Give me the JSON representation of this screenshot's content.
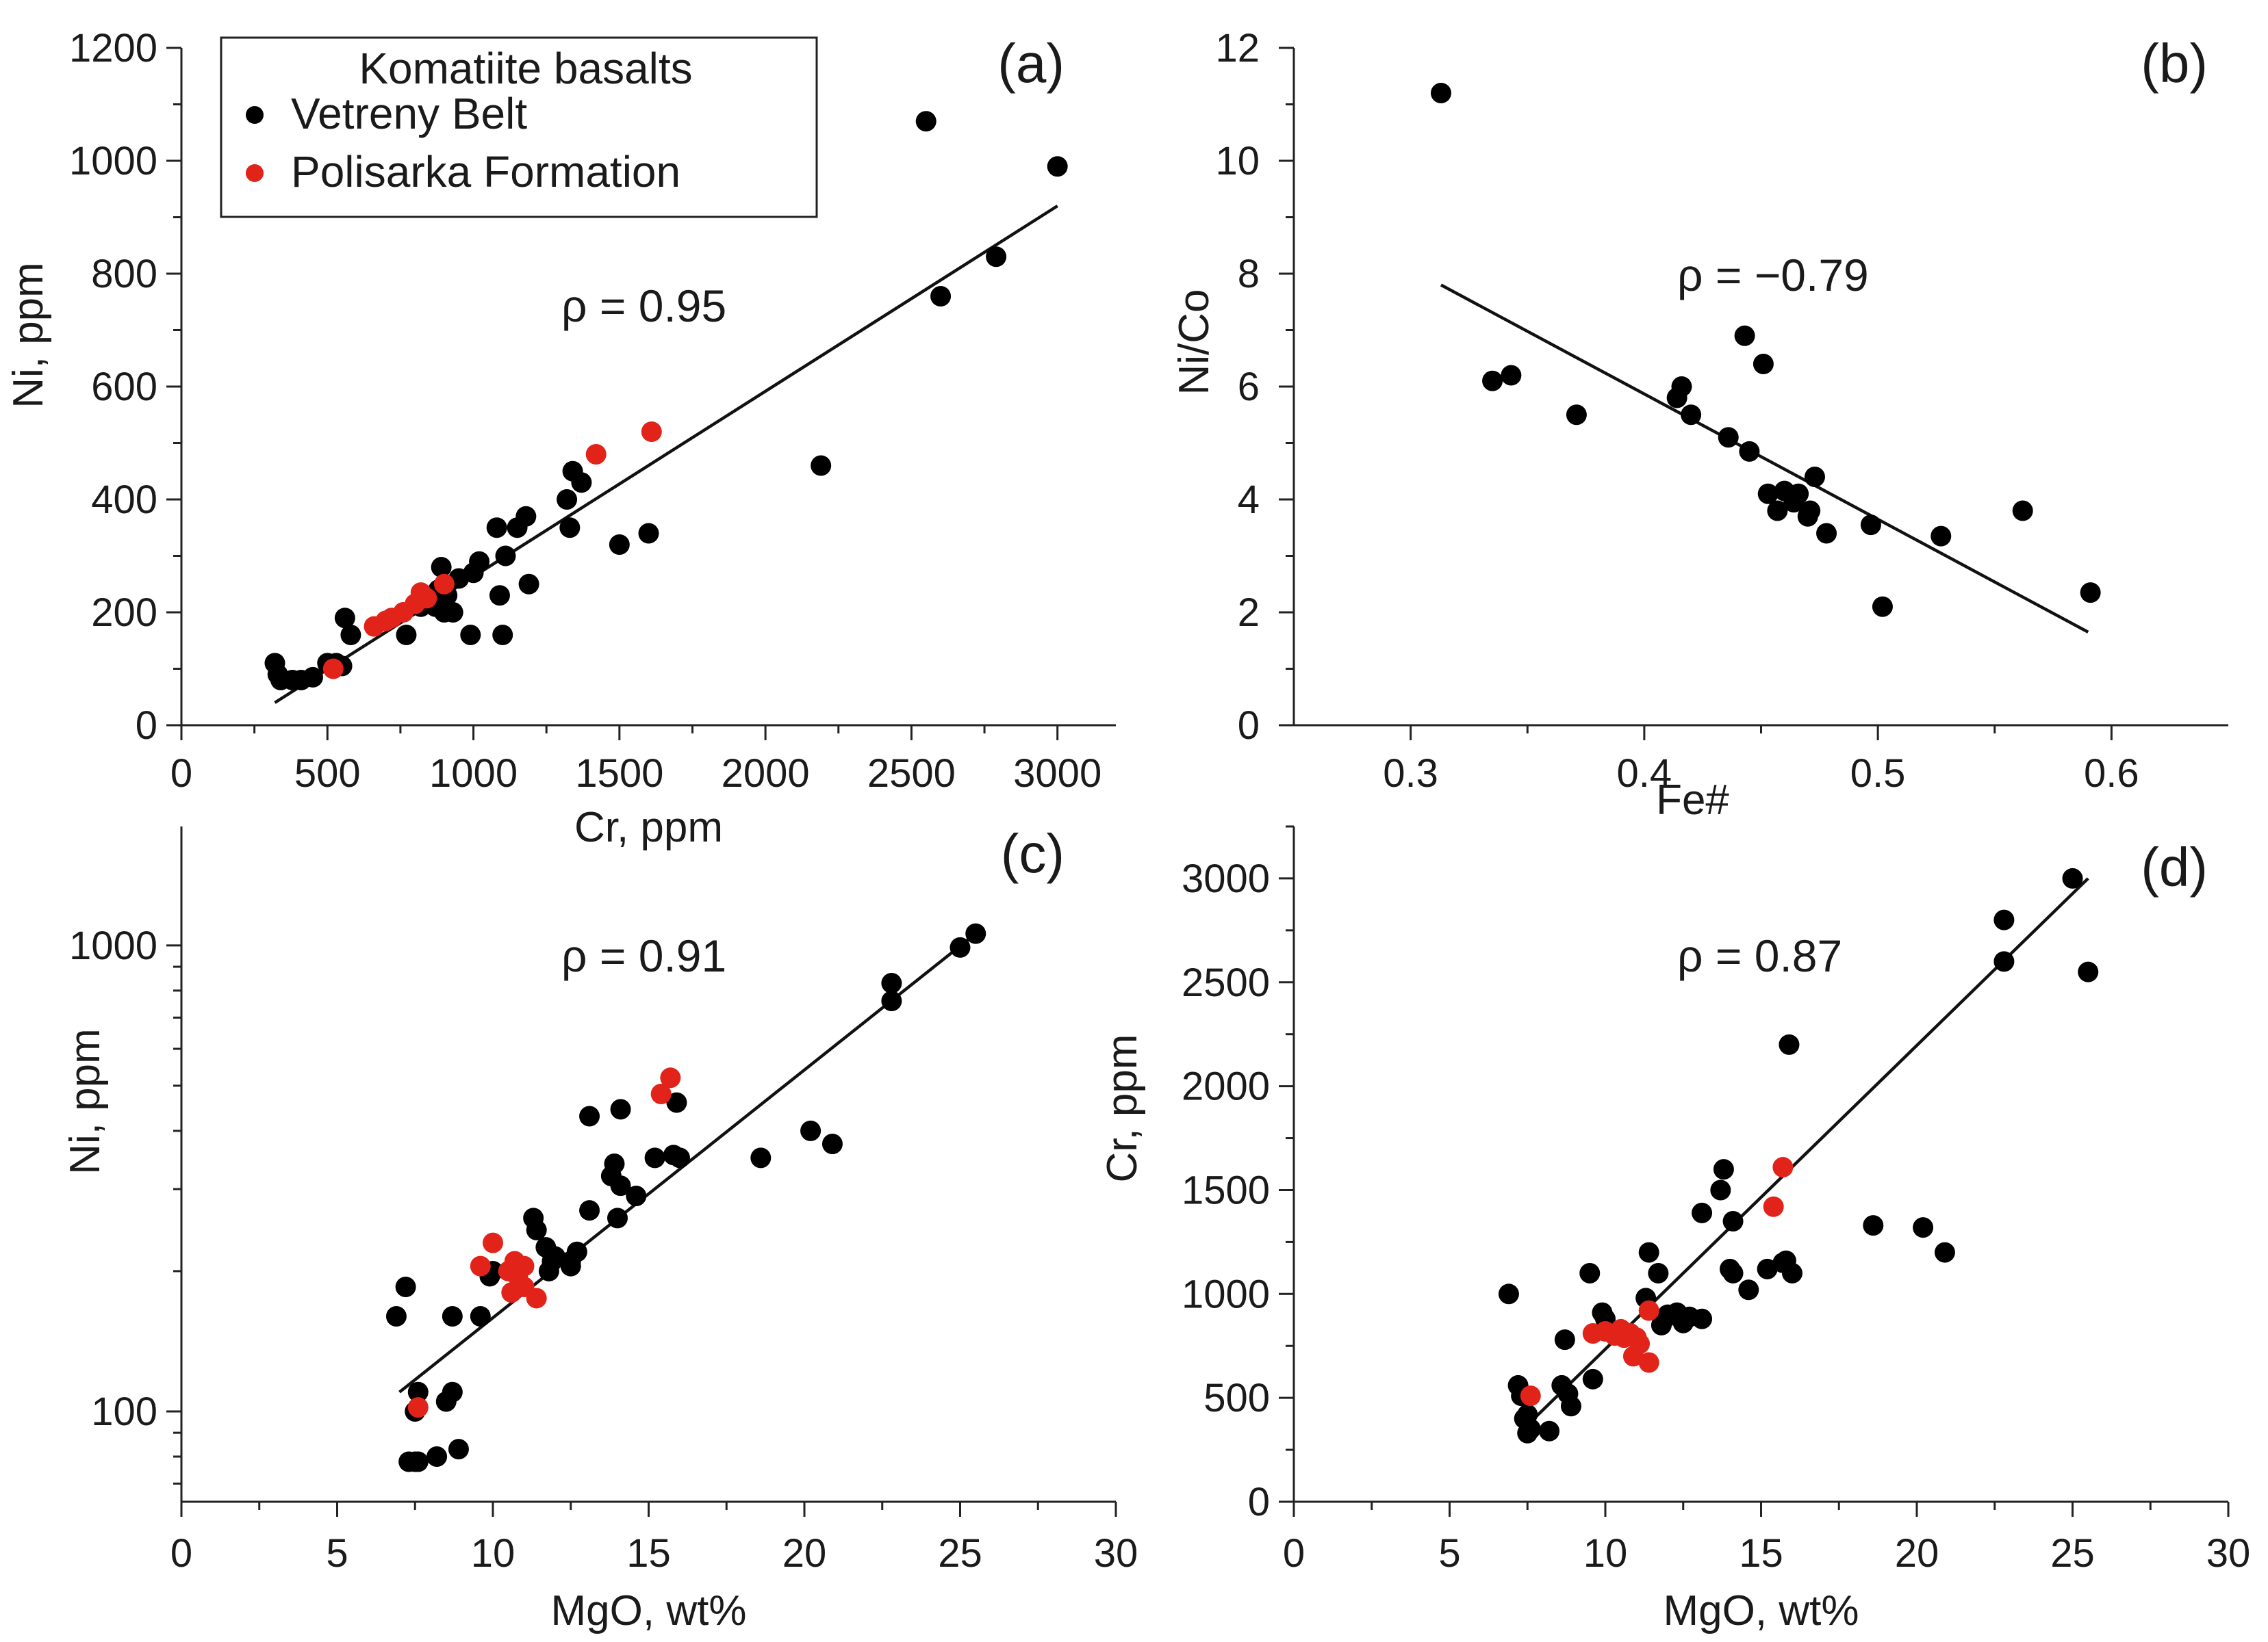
{
  "colors": {
    "vetreny": "#000000",
    "polisarka": "#e2231a"
  },
  "legend": {
    "title": "Komatiite basalts",
    "items": [
      {
        "label": "Vetreny Belt",
        "color": "#000000"
      },
      {
        "label": "Polisarka Formation",
        "color": "#e2231a"
      }
    ]
  },
  "chart_data": [
    {
      "type": "scatter",
      "panel": "(a)",
      "xlabel": "Cr, ppm",
      "ylabel": "Ni, ppm",
      "annotation": "ρ = 0.95",
      "xlim": [
        0,
        3200
      ],
      "ylim": [
        0,
        1200
      ],
      "yscale": "linear",
      "xticks": [
        0,
        500,
        1000,
        1500,
        2000,
        2500,
        3000
      ],
      "xtick_labels": [
        "0",
        "500",
        "1000",
        "1500",
        "2000",
        "2500",
        "3000"
      ],
      "yticks": [
        0,
        200,
        400,
        600,
        800,
        1000,
        1200
      ],
      "ytick_labels": [
        "0",
        "200",
        "400",
        "600",
        "800",
        "1000",
        "1200"
      ],
      "trendline": [
        [
          320,
          40
        ],
        [
          3000,
          920
        ]
      ],
      "series": [
        {
          "name": "Vetreny Belt",
          "points": [
            [
              320,
              110
            ],
            [
              330,
              90
            ],
            [
              340,
              80
            ],
            [
              380,
              80
            ],
            [
              410,
              80
            ],
            [
              450,
              85
            ],
            [
              500,
              110
            ],
            [
              530,
              110
            ],
            [
              550,
              105
            ],
            [
              560,
              190
            ],
            [
              580,
              160
            ],
            [
              770,
              160
            ],
            [
              820,
              210
            ],
            [
              850,
              220
            ],
            [
              870,
              210
            ],
            [
              880,
              240
            ],
            [
              890,
              280
            ],
            [
              900,
              200
            ],
            [
              910,
              230
            ],
            [
              930,
              200
            ],
            [
              950,
              260
            ],
            [
              990,
              160
            ],
            [
              1000,
              270
            ],
            [
              1020,
              290
            ],
            [
              1080,
              350
            ],
            [
              1090,
              230
            ],
            [
              1100,
              160
            ],
            [
              1110,
              300
            ],
            [
              1150,
              350
            ],
            [
              1180,
              370
            ],
            [
              1190,
              250
            ],
            [
              1320,
              400
            ],
            [
              1330,
              350
            ],
            [
              1340,
              450
            ],
            [
              1370,
              430
            ],
            [
              1500,
              320
            ],
            [
              1600,
              340
            ],
            [
              2190,
              460
            ],
            [
              2550,
              1070
            ],
            [
              2600,
              760
            ],
            [
              2790,
              830
            ],
            [
              3000,
              990
            ]
          ]
        },
        {
          "name": "Polisarka Formation",
          "points": [
            [
              520,
              100
            ],
            [
              660,
              175
            ],
            [
              700,
              185
            ],
            [
              720,
              190
            ],
            [
              760,
              200
            ],
            [
              800,
              215
            ],
            [
              820,
              235
            ],
            [
              840,
              225
            ],
            [
              900,
              250
            ],
            [
              1420,
              480
            ],
            [
              1610,
              520
            ]
          ]
        }
      ]
    },
    {
      "type": "scatter",
      "panel": "(b)",
      "xlabel": "Fe#",
      "ylabel": "Ni/Co",
      "annotation": "ρ = −0.79",
      "xlim": [
        0.25,
        0.65
      ],
      "ylim": [
        0,
        12
      ],
      "yscale": "linear",
      "xticks": [
        0.3,
        0.4,
        0.5,
        0.6
      ],
      "xtick_labels": [
        "0.3",
        "0.4",
        "0.5",
        "0.6"
      ],
      "yticks": [
        0,
        2,
        4,
        6,
        8,
        10,
        12
      ],
      "ytick_labels": [
        "0",
        "2",
        "4",
        "6",
        "8",
        "10",
        "12"
      ],
      "trendline": [
        [
          0.313,
          7.8
        ],
        [
          0.59,
          1.65
        ]
      ],
      "series": [
        {
          "name": "Vetreny Belt",
          "points": [
            [
              0.313,
              11.2
            ],
            [
              0.335,
              6.1
            ],
            [
              0.343,
              6.2
            ],
            [
              0.371,
              5.5
            ],
            [
              0.414,
              5.8
            ],
            [
              0.416,
              6.0
            ],
            [
              0.42,
              5.5
            ],
            [
              0.436,
              5.1
            ],
            [
              0.443,
              6.9
            ],
            [
              0.445,
              4.85
            ],
            [
              0.451,
              6.4
            ],
            [
              0.453,
              4.1
            ],
            [
              0.457,
              3.8
            ],
            [
              0.46,
              4.15
            ],
            [
              0.464,
              3.95
            ],
            [
              0.466,
              4.1
            ],
            [
              0.47,
              3.7
            ],
            [
              0.471,
              3.8
            ],
            [
              0.473,
              4.4
            ],
            [
              0.478,
              3.4
            ],
            [
              0.497,
              3.55
            ],
            [
              0.502,
              2.1
            ],
            [
              0.527,
              3.35
            ],
            [
              0.562,
              3.8
            ],
            [
              0.591,
              2.35
            ]
          ]
        }
      ]
    },
    {
      "type": "scatter",
      "panel": "(c)",
      "xlabel": "MgO,  wt%",
      "ylabel": "Ni, ppm",
      "annotation": "ρ = 0.91",
      "xlim": [
        0,
        30
      ],
      "ylim": [
        64,
        1800
      ],
      "yscale": "log",
      "xticks": [
        0,
        5,
        10,
        15,
        20,
        25,
        30
      ],
      "xtick_labels": [
        "0",
        "5",
        "10",
        "15",
        "20",
        "25",
        "30"
      ],
      "yticks": [
        100,
        1000
      ],
      "ytick_labels": [
        "100",
        "1000"
      ],
      "trendline": [
        [
          7.0,
          110
        ],
        [
          25.5,
          1060
        ]
      ],
      "series": [
        {
          "name": "Vetreny Belt",
          "points": [
            [
              6.9,
              160
            ],
            [
              7.2,
              185
            ],
            [
              7.3,
              78
            ],
            [
              7.5,
              78
            ],
            [
              7.5,
              100
            ],
            [
              7.6,
              110
            ],
            [
              7.6,
              78
            ],
            [
              8.2,
              80
            ],
            [
              8.5,
              105
            ],
            [
              8.7,
              110
            ],
            [
              8.7,
              160
            ],
            [
              8.9,
              83
            ],
            [
              9.6,
              160
            ],
            [
              9.9,
              195
            ],
            [
              10.0,
              200
            ],
            [
              11.3,
              260
            ],
            [
              11.4,
              245
            ],
            [
              11.7,
              225
            ],
            [
              11.8,
              200
            ],
            [
              11.9,
              210
            ],
            [
              12.0,
              215
            ],
            [
              12.5,
              205
            ],
            [
              12.5,
              210
            ],
            [
              12.7,
              220
            ],
            [
              13.1,
              270
            ],
            [
              13.1,
              430
            ],
            [
              13.8,
              320
            ],
            [
              13.9,
              340
            ],
            [
              14.0,
              260
            ],
            [
              14.1,
              305
            ],
            [
              14.1,
              445
            ],
            [
              14.6,
              290
            ],
            [
              15.2,
              350
            ],
            [
              15.8,
              355
            ],
            [
              15.9,
              460
            ],
            [
              16.0,
              350
            ],
            [
              18.6,
              350
            ],
            [
              20.2,
              400
            ],
            [
              20.9,
              375
            ],
            [
              22.8,
              830
            ],
            [
              22.8,
              760
            ],
            [
              25.0,
              990
            ],
            [
              25.5,
              1060
            ]
          ]
        },
        {
          "name": "Polisarka Formation",
          "points": [
            [
              7.6,
              102
            ],
            [
              9.6,
              205
            ],
            [
              10.0,
              230
            ],
            [
              10.5,
              200
            ],
            [
              10.6,
              180
            ],
            [
              10.7,
              210
            ],
            [
              10.8,
              195
            ],
            [
              11.0,
              185
            ],
            [
              11.0,
              205
            ],
            [
              11.4,
              175
            ],
            [
              15.4,
              480
            ],
            [
              15.7,
              520
            ]
          ]
        }
      ]
    },
    {
      "type": "scatter",
      "panel": "(d)",
      "xlabel": "MgO,  wt%",
      "ylabel": "Cr, ppm",
      "annotation": "ρ = 0.87",
      "xlim": [
        0,
        30
      ],
      "ylim": [
        0,
        3250
      ],
      "yscale": "linear",
      "xticks": [
        0,
        5,
        10,
        15,
        20,
        25,
        30
      ],
      "xtick_labels": [
        "0",
        "5",
        "10",
        "15",
        "20",
        "25",
        "30"
      ],
      "yticks": [
        0,
        500,
        1000,
        1500,
        2000,
        2500,
        3000
      ],
      "ytick_labels": [
        "0",
        "500",
        "1000",
        "1500",
        "2000",
        "2500",
        "3000"
      ],
      "trendline": [
        [
          7.3,
          340
        ],
        [
          25.5,
          3000
        ]
      ],
      "series": [
        {
          "name": "Vetreny Belt",
          "points": [
            [
              6.9,
              1000
            ],
            [
              7.2,
              560
            ],
            [
              7.3,
              510
            ],
            [
              7.4,
              400
            ],
            [
              7.5,
              420
            ],
            [
              7.5,
              330
            ],
            [
              7.6,
              350
            ],
            [
              8.2,
              340
            ],
            [
              8.6,
              560
            ],
            [
              8.7,
              780
            ],
            [
              8.8,
              520
            ],
            [
              8.9,
              460
            ],
            [
              9.5,
              1100
            ],
            [
              9.6,
              590
            ],
            [
              9.9,
              910
            ],
            [
              10.0,
              880
            ],
            [
              11.3,
              980
            ],
            [
              11.4,
              1200
            ],
            [
              11.7,
              1100
            ],
            [
              11.8,
              850
            ],
            [
              11.9,
              880
            ],
            [
              12.0,
              900
            ],
            [
              12.3,
              910
            ],
            [
              12.5,
              860
            ],
            [
              12.7,
              890
            ],
            [
              13.1,
              880
            ],
            [
              13.1,
              1390
            ],
            [
              13.7,
              1500
            ],
            [
              13.8,
              1600
            ],
            [
              14.0,
              1120
            ],
            [
              14.1,
              1350
            ],
            [
              14.1,
              1100
            ],
            [
              14.6,
              1020
            ],
            [
              15.2,
              1120
            ],
            [
              15.7,
              1150
            ],
            [
              15.8,
              1160
            ],
            [
              15.9,
              2200
            ],
            [
              16.0,
              1100
            ],
            [
              18.6,
              1330
            ],
            [
              20.2,
              1320
            ],
            [
              20.9,
              1200
            ],
            [
              22.8,
              2800
            ],
            [
              22.8,
              2600
            ],
            [
              25.0,
              3000
            ],
            [
              25.5,
              2550
            ]
          ]
        },
        {
          "name": "Polisarka Formation",
          "points": [
            [
              7.6,
              510
            ],
            [
              9.6,
              810
            ],
            [
              10.0,
              820
            ],
            [
              10.3,
              800
            ],
            [
              10.5,
              830
            ],
            [
              10.6,
              790
            ],
            [
              10.8,
              810
            ],
            [
              10.9,
              700
            ],
            [
              11.0,
              790
            ],
            [
              11.1,
              760
            ],
            [
              11.4,
              670
            ],
            [
              11.4,
              920
            ],
            [
              15.4,
              1420
            ],
            [
              15.7,
              1610
            ]
          ]
        }
      ]
    }
  ]
}
